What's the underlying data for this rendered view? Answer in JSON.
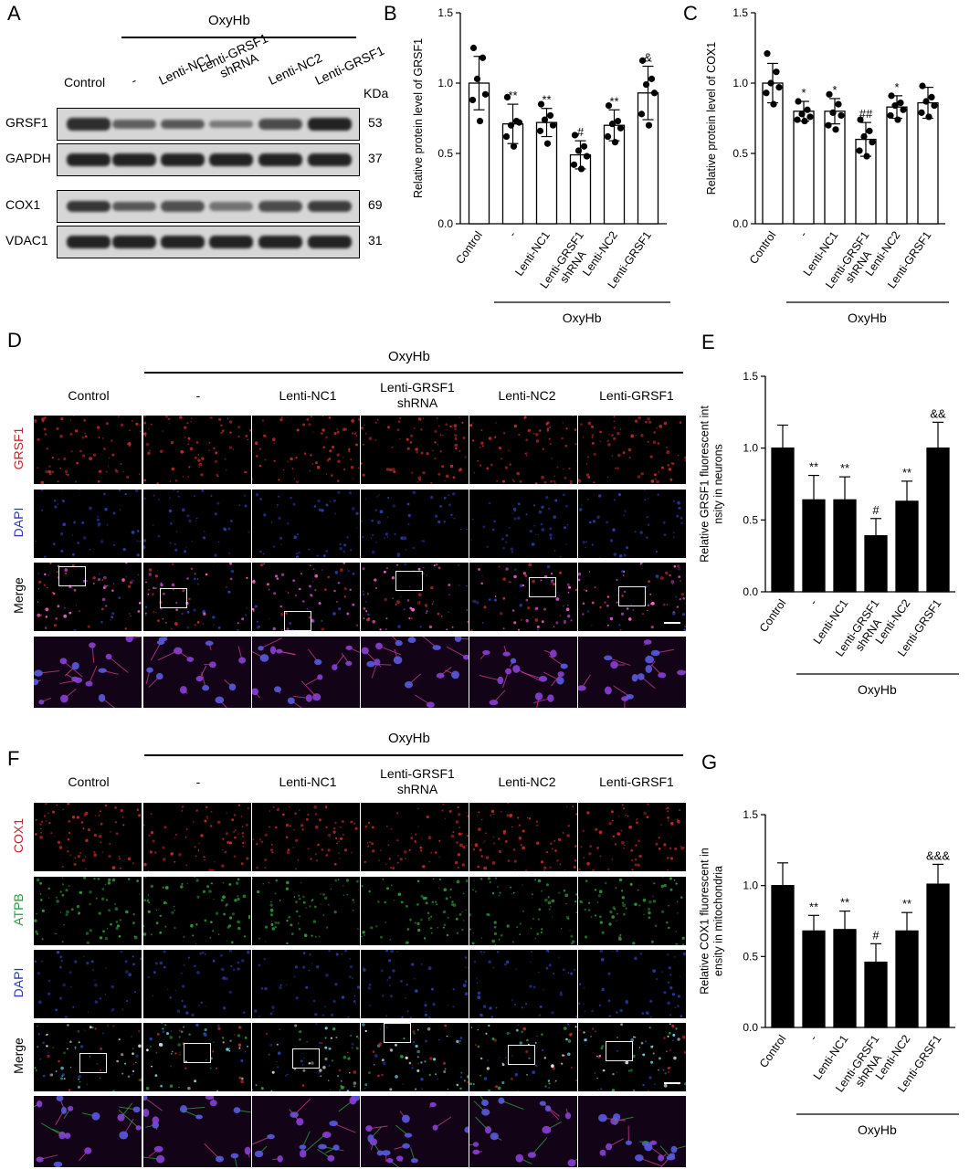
{
  "panels": {
    "A": "A",
    "B": "B",
    "C": "C",
    "D": "D",
    "E": "E",
    "F": "F",
    "G": "G"
  },
  "groups": [
    "Control",
    "-",
    "Lenti-NC1",
    "Lenti-GRSF1\nshRNA",
    "Lenti-NC2",
    "Lenti-GRSF1"
  ],
  "group_labels": {
    "control": "Control",
    "dash": "-",
    "nc1": "Lenti-NC1",
    "sh_line1": "Lenti-GRSF1",
    "sh_line2": "shRNA",
    "nc2": "Lenti-NC2",
    "oe": "Lenti-GRSF1"
  },
  "treatment": "OxyHb",
  "blot": {
    "kda_label": "KDa",
    "rows": [
      {
        "name": "GRSF1",
        "kda": "53",
        "intensity": [
          0.9,
          0.55,
          0.6,
          0.35,
          0.7,
          1.0
        ]
      },
      {
        "name": "GAPDH",
        "kda": "37",
        "intensity": [
          1,
          1,
          1,
          1,
          1,
          1
        ]
      },
      {
        "name": "COX1",
        "kda": "69",
        "intensity": [
          0.85,
          0.6,
          0.65,
          0.4,
          0.7,
          0.8
        ]
      },
      {
        "name": "VDAC1",
        "kda": "31",
        "intensity": [
          1,
          1,
          1,
          1,
          1,
          1
        ]
      }
    ]
  },
  "image_rows": {
    "D": [
      "GRSF1",
      "DAPI",
      "Merge"
    ],
    "F": [
      "COX1",
      "ATPB",
      "DAPI",
      "Merge"
    ]
  },
  "colors": {
    "red": "#c0282d",
    "blue": "#2b3aa8",
    "green": "#2e9a3c"
  },
  "chart_data": [
    {
      "panel": "B",
      "type": "bar",
      "ylabel": "Relative protein level of GRSF1",
      "ylim": [
        0,
        1.5
      ],
      "yticks": [
        "0.0",
        "0.5",
        "1.0",
        "1.5"
      ],
      "categories": [
        "Control",
        "-",
        "Lenti-NC1",
        "Lenti-GRSF1 shRNA",
        "Lenti-NC2",
        "Lenti-GRSF1"
      ],
      "values": [
        1.0,
        0.71,
        0.72,
        0.49,
        0.7,
        0.93
      ],
      "errors": [
        0.19,
        0.14,
        0.1,
        0.1,
        0.11,
        0.19
      ],
      "annotations": [
        "",
        "**",
        "**",
        "#",
        "**",
        "&"
      ],
      "points": [
        [
          1.25,
          1.18,
          1.03,
          0.92,
          0.88,
          0.73
        ],
        [
          0.9,
          0.73,
          0.7,
          0.72,
          0.62,
          0.55
        ],
        [
          0.85,
          0.77,
          0.74,
          0.7,
          0.66,
          0.57
        ],
        [
          0.63,
          0.55,
          0.52,
          0.48,
          0.42,
          0.39
        ],
        [
          0.84,
          0.73,
          0.71,
          0.68,
          0.62,
          0.58
        ],
        [
          1.16,
          1.03,
          0.99,
          0.93,
          0.78,
          0.7
        ]
      ],
      "fill": "white",
      "xgroup": "OxyHb"
    },
    {
      "panel": "C",
      "type": "bar",
      "ylabel": "Relative protein level of COX1",
      "ylim": [
        0,
        1.5
      ],
      "yticks": [
        "0.0",
        "0.5",
        "1.0",
        "1.5"
      ],
      "categories": [
        "Control",
        "-",
        "Lenti-NC1",
        "Lenti-GRSF1 shRNA",
        "Lenti-NC2",
        "Lenti-GRSF1"
      ],
      "values": [
        1.0,
        0.8,
        0.8,
        0.6,
        0.83,
        0.86
      ],
      "errors": [
        0.14,
        0.07,
        0.09,
        0.12,
        0.08,
        0.11
      ],
      "annotations": [
        "",
        "*",
        "*",
        "##",
        "*",
        ""
      ],
      "points": [
        [
          1.21,
          1.08,
          1.0,
          0.97,
          0.93,
          0.85
        ],
        [
          0.87,
          0.81,
          0.78,
          0.76,
          0.74,
          0.73
        ],
        [
          0.92,
          0.85,
          0.79,
          0.77,
          0.7,
          0.67
        ],
        [
          0.74,
          0.66,
          0.62,
          0.58,
          0.52,
          0.48
        ],
        [
          0.91,
          0.86,
          0.84,
          0.81,
          0.77,
          0.74
        ],
        [
          0.98,
          0.9,
          0.87,
          0.84,
          0.79,
          0.76
        ]
      ],
      "fill": "white",
      "xgroup": "OxyHb"
    },
    {
      "panel": "E",
      "type": "bar",
      "ylabel": "Relative GRSF1 fluorescent intensity in neurons",
      "ylim": [
        0,
        1.5
      ],
      "yticks": [
        "0.0",
        "0.5",
        "1.0",
        "1.5"
      ],
      "categories": [
        "Control",
        "-",
        "Lenti-NC1",
        "Lenti-GRSF1 shRNA",
        "Lenti-NC2",
        "Lenti-GRSF1"
      ],
      "values": [
        1.0,
        0.64,
        0.64,
        0.39,
        0.63,
        1.0
      ],
      "errors": [
        0.16,
        0.17,
        0.16,
        0.12,
        0.14,
        0.18
      ],
      "annotations": [
        "",
        "**",
        "**",
        "#",
        "**",
        "&&"
      ],
      "fill": "black",
      "xgroup": "OxyHb"
    },
    {
      "panel": "G",
      "type": "bar",
      "ylabel": "Relative COX1 fluorescent intensity in mitochondria",
      "ylim": [
        0,
        1.5
      ],
      "yticks": [
        "0.0",
        "0.5",
        "1.0",
        "1.5"
      ],
      "categories": [
        "Control",
        "-",
        "Lenti-NC1",
        "Lenti-GRSF1 shRNA",
        "Lenti-NC2",
        "Lenti-GRSF1"
      ],
      "values": [
        1.0,
        0.68,
        0.69,
        0.46,
        0.68,
        1.01
      ],
      "errors": [
        0.16,
        0.11,
        0.13,
        0.13,
        0.13,
        0.14
      ],
      "annotations": [
        "",
        "**",
        "**",
        "#",
        "**",
        "&&&"
      ],
      "fill": "black",
      "xgroup": "OxyHb"
    }
  ]
}
